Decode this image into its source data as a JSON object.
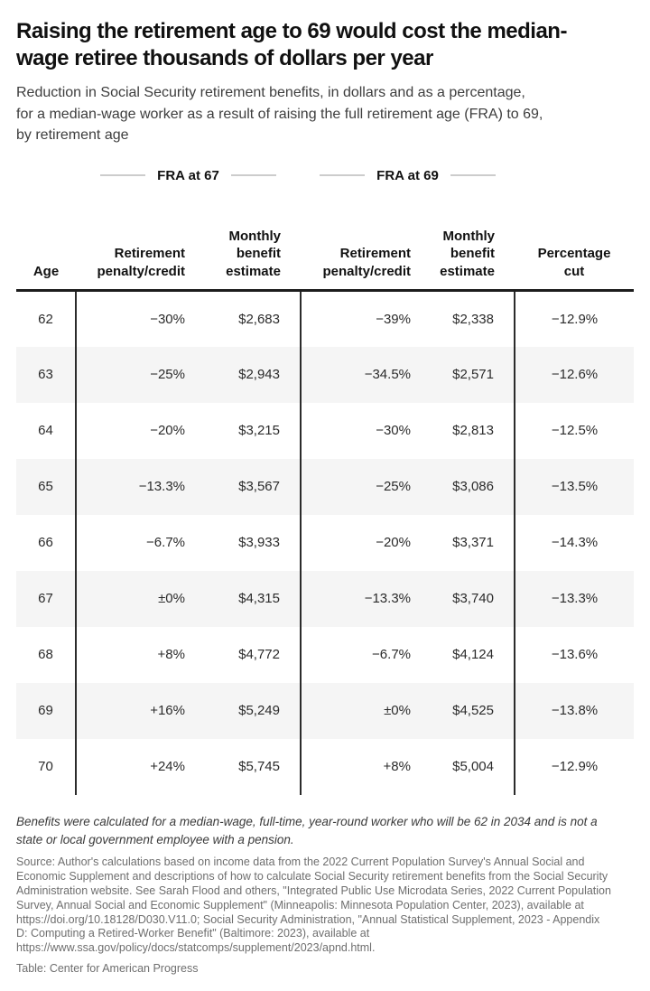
{
  "header": {
    "title": "Raising the retirement age to 69 would cost the median-\nwage retiree thousands of dollars per year",
    "subtitle": "Reduction in Social Security retirement benefits, in dollars and as a percentage,\nfor a median-wage worker as a result of raising the full retirement age (FRA) to 69,\nby retirement age"
  },
  "chart_data": {
    "type": "table",
    "column_groups": [
      {
        "label": "FRA at 67",
        "spans_columns": [
          "Retirement penalty/credit",
          "Monthly benefit estimate"
        ]
      },
      {
        "label": "FRA at 69",
        "spans_columns": [
          "Retirement penalty/credit",
          "Monthly benefit estimate"
        ]
      }
    ],
    "columns": [
      "Age",
      "Retirement penalty/credit",
      "Monthly benefit estimate",
      "Retirement penalty/credit",
      "Monthly benefit estimate",
      "Percentage cut"
    ],
    "rows": [
      {
        "age": "62",
        "fra67_penalty": "−30%",
        "fra67_benefit": "$2,683",
        "fra69_penalty": "−39%",
        "fra69_benefit": "$2,338",
        "pct_cut": "−12.9%"
      },
      {
        "age": "63",
        "fra67_penalty": "−25%",
        "fra67_benefit": "$2,943",
        "fra69_penalty": "−34.5%",
        "fra69_benefit": "$2,571",
        "pct_cut": "−12.6%"
      },
      {
        "age": "64",
        "fra67_penalty": "−20%",
        "fra67_benefit": "$3,215",
        "fra69_penalty": "−30%",
        "fra69_benefit": "$2,813",
        "pct_cut": "−12.5%"
      },
      {
        "age": "65",
        "fra67_penalty": "−13.3%",
        "fra67_benefit": "$3,567",
        "fra69_penalty": "−25%",
        "fra69_benefit": "$3,086",
        "pct_cut": "−13.5%"
      },
      {
        "age": "66",
        "fra67_penalty": "−6.7%",
        "fra67_benefit": "$3,933",
        "fra69_penalty": "−20%",
        "fra69_benefit": "$3,371",
        "pct_cut": "−14.3%"
      },
      {
        "age": "67",
        "fra67_penalty": "±0%",
        "fra67_benefit": "$4,315",
        "fra69_penalty": "−13.3%",
        "fra69_benefit": "$3,740",
        "pct_cut": "−13.3%"
      },
      {
        "age": "68",
        "fra67_penalty": "+8%",
        "fra67_benefit": "$4,772",
        "fra69_penalty": "−6.7%",
        "fra69_benefit": "$4,124",
        "pct_cut": "−13.6%"
      },
      {
        "age": "69",
        "fra67_penalty": "+16%",
        "fra67_benefit": "$5,249",
        "fra69_penalty": "±0%",
        "fra69_benefit": "$4,525",
        "pct_cut": "−13.8%"
      },
      {
        "age": "70",
        "fra67_penalty": "+24%",
        "fra67_benefit": "$5,745",
        "fra69_penalty": "+8%",
        "fra69_benefit": "$5,004",
        "pct_cut": "−12.9%"
      }
    ],
    "layout_hints": {
      "striped_rows": "odd ages (63, 65, 67, 69) shaded",
      "vertical_rules_after": [
        "Age",
        "FRA at 67 group",
        "FRA at 69 group"
      ]
    }
  },
  "footer": {
    "note": "Benefits were calculated for a median-wage, full-time, year-round worker who will be 62 in 2034 and is not a\nstate or local government employee with a pension.",
    "source": "Source: Author's calculations based on income data from the 2022 Current Population Survey's Annual Social and\nEconomic Supplement and descriptions of how to calculate Social Security retirement benefits from the Social Security\nAdministration website. See Sarah Flood and others, \"Integrated Public Use Microdata Series, 2022 Current Population\nSurvey, Annual Social and Economic Supplement\" (Minneapolis: Minnesota Population Center, 2023), available at\nhttps://doi.org/10.18128/D030.V11.0; Social Security Administration, \"Annual Statistical Supplement, 2023 - Appendix\nD: Computing a Retired-Worker Benefit\" (Baltimore: 2023), available at\nhttps://www.ssa.gov/policy/docs/statcomps/supplement/2023/apnd.html.",
    "credit": "Table: Center for American Progress"
  },
  "colors": {
    "header_rule": "#1c1c1c",
    "vertical_rule": "#2b2b2b",
    "row_stripe": "#f5f5f5",
    "group_line": "#cccccc",
    "title_text": "#111111",
    "muted_text": "#6e6e6e"
  }
}
